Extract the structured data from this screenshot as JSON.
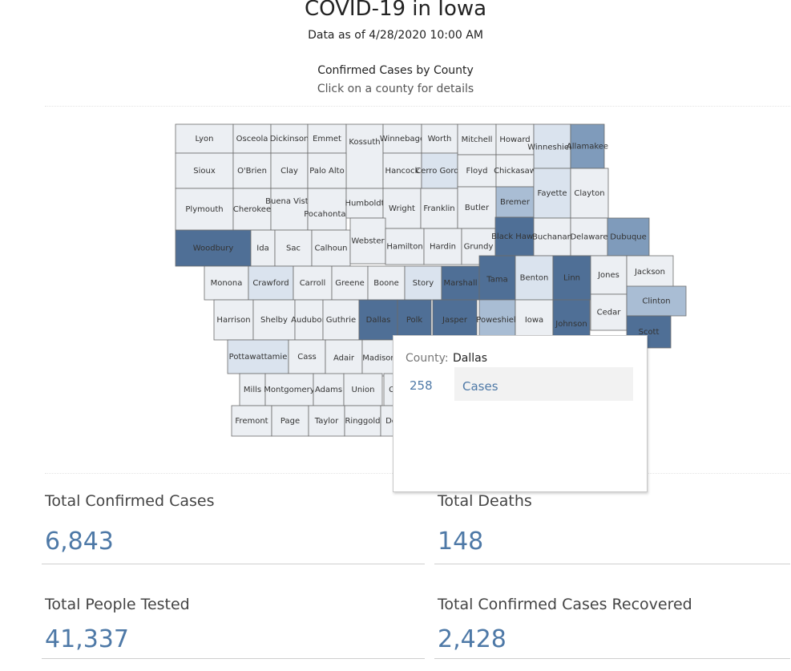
{
  "header": {
    "title": "COVID-19 in Iowa",
    "as_of": "Data as of 4/28/2020 10:00 AM",
    "map_subtitle": "Confirmed Cases by County",
    "map_instruction": "Click on a county for details"
  },
  "map": {
    "colors": {
      "dark": "#4f6f96",
      "medium": "#7f9bbb",
      "light": "#a9bdd4",
      "pale": "#dae3ee",
      "base": "#eceff3"
    },
    "counties": [
      {
        "name": "Lyon",
        "shade": "base"
      },
      {
        "name": "Osceola",
        "shade": "base"
      },
      {
        "name": "Dickinson",
        "shade": "base"
      },
      {
        "name": "Emmet",
        "shade": "base"
      },
      {
        "name": "Kossuth",
        "shade": "base"
      },
      {
        "name": "Winnebago",
        "shade": "base"
      },
      {
        "name": "Worth",
        "shade": "base"
      },
      {
        "name": "Mitchell",
        "shade": "base"
      },
      {
        "name": "Howard",
        "shade": "base"
      },
      {
        "name": "Winneshiek",
        "shade": "pale"
      },
      {
        "name": "Allamakee",
        "shade": "medium"
      },
      {
        "name": "Sioux",
        "shade": "base"
      },
      {
        "name": "O'Brien",
        "shade": "base"
      },
      {
        "name": "Clay",
        "shade": "base"
      },
      {
        "name": "Palo Alto",
        "shade": "base"
      },
      {
        "name": "Hancock",
        "shade": "base"
      },
      {
        "name": "Cerro Gordo",
        "shade": "pale"
      },
      {
        "name": "Floyd",
        "shade": "base"
      },
      {
        "name": "Chickasaw",
        "shade": "base"
      },
      {
        "name": "Plymouth",
        "shade": "base"
      },
      {
        "name": "Cherokee",
        "shade": "base"
      },
      {
        "name": "Buena Vista",
        "shade": "base"
      },
      {
        "name": "Pocahontas",
        "shade": "base"
      },
      {
        "name": "Humboldt",
        "shade": "base"
      },
      {
        "name": "Wright",
        "shade": "base"
      },
      {
        "name": "Franklin",
        "shade": "base"
      },
      {
        "name": "Butler",
        "shade": "base"
      },
      {
        "name": "Bremer",
        "shade": "light"
      },
      {
        "name": "Fayette",
        "shade": "pale"
      },
      {
        "name": "Clayton",
        "shade": "base"
      },
      {
        "name": "Woodbury",
        "shade": "dark"
      },
      {
        "name": "Ida",
        "shade": "base"
      },
      {
        "name": "Sac",
        "shade": "base"
      },
      {
        "name": "Calhoun",
        "shade": "base"
      },
      {
        "name": "Webster",
        "shade": "base"
      },
      {
        "name": "Hamilton",
        "shade": "base"
      },
      {
        "name": "Hardin",
        "shade": "base"
      },
      {
        "name": "Grundy",
        "shade": "base"
      },
      {
        "name": "Black Hawk",
        "shade": "dark"
      },
      {
        "name": "Buchanan",
        "shade": "base"
      },
      {
        "name": "Delaware",
        "shade": "base"
      },
      {
        "name": "Dubuque",
        "shade": "medium"
      },
      {
        "name": "Monona",
        "shade": "base"
      },
      {
        "name": "Crawford",
        "shade": "pale"
      },
      {
        "name": "Carroll",
        "shade": "base"
      },
      {
        "name": "Greene",
        "shade": "base"
      },
      {
        "name": "Boone",
        "shade": "base"
      },
      {
        "name": "Story",
        "shade": "pale"
      },
      {
        "name": "Marshall",
        "shade": "dark"
      },
      {
        "name": "Tama",
        "shade": "dark"
      },
      {
        "name": "Benton",
        "shade": "pale"
      },
      {
        "name": "Linn",
        "shade": "dark"
      },
      {
        "name": "Jones",
        "shade": "base"
      },
      {
        "name": "Jackson",
        "shade": "base"
      },
      {
        "name": "Harrison",
        "shade": "base"
      },
      {
        "name": "Shelby",
        "shade": "base"
      },
      {
        "name": "Audubon",
        "shade": "base"
      },
      {
        "name": "Guthrie",
        "shade": "base"
      },
      {
        "name": "Dallas",
        "shade": "dark"
      },
      {
        "name": "Polk",
        "shade": "dark"
      },
      {
        "name": "Jasper",
        "shade": "dark"
      },
      {
        "name": "Poweshiek",
        "shade": "light"
      },
      {
        "name": "Iowa",
        "shade": "base"
      },
      {
        "name": "Johnson",
        "shade": "dark"
      },
      {
        "name": "Cedar",
        "shade": "base"
      },
      {
        "name": "Clinton",
        "shade": "light"
      },
      {
        "name": "Scott",
        "shade": "dark"
      },
      {
        "name": "Pottawattamie",
        "shade": "pale"
      },
      {
        "name": "Cass",
        "shade": "base"
      },
      {
        "name": "Adair",
        "shade": "base"
      },
      {
        "name": "Madison",
        "shade": "base"
      },
      {
        "name": "Cl",
        "shade": "base"
      },
      {
        "name": "Mills",
        "shade": "base"
      },
      {
        "name": "Montgomery",
        "shade": "base"
      },
      {
        "name": "Adams",
        "shade": "base"
      },
      {
        "name": "Union",
        "shade": "base"
      },
      {
        "name": "Fremont",
        "shade": "base"
      },
      {
        "name": "Page",
        "shade": "base"
      },
      {
        "name": "Taylor",
        "shade": "base"
      },
      {
        "name": "Ringgold",
        "shade": "base"
      },
      {
        "name": "De",
        "shade": "base"
      }
    ]
  },
  "tooltip": {
    "label": "County:",
    "county": "Dallas",
    "cases_value": "258",
    "cases_label": "Cases"
  },
  "kpis": {
    "total_cases": {
      "label": "Total Confirmed Cases",
      "value": "6,843"
    },
    "total_deaths": {
      "label": "Total Deaths",
      "value": "148"
    },
    "total_tested": {
      "label": "Total People Tested",
      "value": "41,337"
    },
    "total_recovered": {
      "label": "Total Confirmed Cases Recovered",
      "value": "2,428"
    }
  }
}
